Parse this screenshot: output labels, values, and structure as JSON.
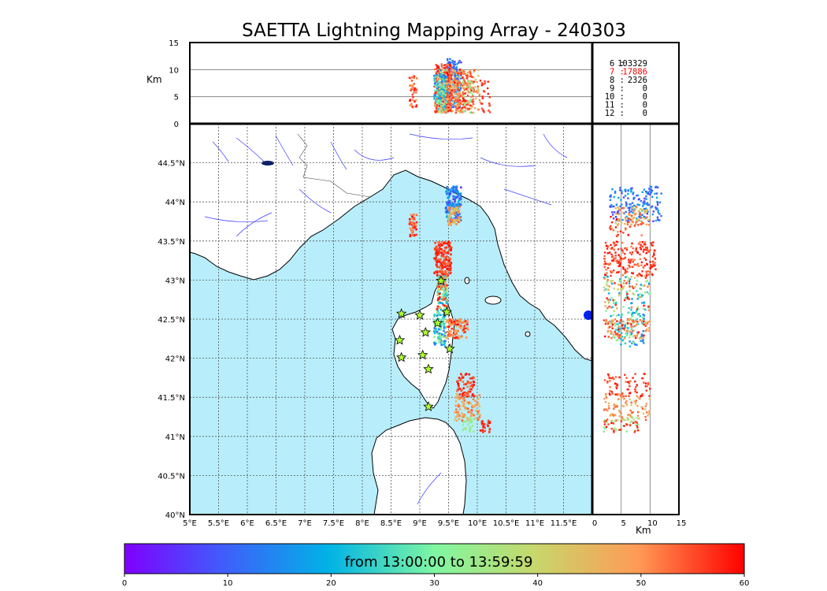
{
  "title": "SAETTA Lightning Mapping Array - 240303",
  "map": {
    "lon_ticks": [
      "5°E",
      "5.5°E",
      "6°E",
      "6.5°E",
      "7°E",
      "7.5°E",
      "8°E",
      "8.5°E",
      "9°E",
      "9.5°E",
      "10°E",
      "10.5°E",
      "11°E",
      "11.5°E"
    ],
    "lat_ticks": [
      "40°N",
      "40.5°N",
      "41°N",
      "41.5°N",
      "42°N",
      "42.5°N",
      "43°N",
      "43.5°N",
      "44°N",
      "44.5°N"
    ],
    "lon_range": [
      5,
      12
    ],
    "lat_range": [
      40,
      45
    ],
    "sea_color": "#b8eefb",
    "land_color": "#ffffff",
    "grid": "dotted"
  },
  "top_panel": {
    "unit": "Km",
    "y_ticks": [
      "0",
      "5",
      "10",
      "15"
    ],
    "ylim": [
      0,
      15
    ]
  },
  "side_panel": {
    "unit": "Km",
    "x_ticks": [
      "0",
      "5",
      "10",
      "15"
    ],
    "xlim": [
      0,
      15
    ]
  },
  "station_counts": [
    {
      "label": "6  :",
      "value": "103329",
      "color": "#000000"
    },
    {
      "label": "7  :",
      "value": "17886",
      "color": "#ff0000"
    },
    {
      "label": "8  :",
      "value": "2326",
      "color": "#000000"
    },
    {
      "label": "9  :",
      "value": "0",
      "color": "#000000"
    },
    {
      "label": "10  :",
      "value": "0",
      "color": "#000000"
    },
    {
      "label": "11  :",
      "value": "0",
      "color": "#000000"
    },
    {
      "label": "12  :",
      "value": "0",
      "color": "#000000"
    }
  ],
  "colorbar": {
    "label": "from 13:00:00 to 13:59:59",
    "ticks": [
      "0",
      "10",
      "20",
      "30",
      "40",
      "50",
      "60"
    ],
    "range": [
      0,
      60
    ],
    "colormap": "rainbow"
  },
  "chart_data": {
    "type": "scatter",
    "x_quantity": "longitude",
    "y_quantity": "latitude",
    "color_quantity": "minutes after 13:00:00",
    "stations": [
      {
        "lon": 8.68,
        "lat": 42.57
      },
      {
        "lon": 9.0,
        "lat": 42.55
      },
      {
        "lon": 9.47,
        "lat": 42.59
      },
      {
        "lon": 9.31,
        "lat": 42.45
      },
      {
        "lon": 9.1,
        "lat": 42.33
      },
      {
        "lon": 8.65,
        "lat": 42.23
      },
      {
        "lon": 9.52,
        "lat": 42.12
      },
      {
        "lon": 8.68,
        "lat": 42.01
      },
      {
        "lon": 9.05,
        "lat": 42.04
      },
      {
        "lon": 9.15,
        "lat": 41.86
      },
      {
        "lon": 9.15,
        "lat": 41.38
      },
      {
        "lon": 9.37,
        "lat": 42.99
      }
    ],
    "clusters": [
      {
        "lon": [
          9.45,
          9.72
        ],
        "lat": [
          43.75,
          44.2
        ],
        "alt": [
          3,
          12
        ],
        "t": [
          5,
          20
        ],
        "n": 170
      },
      {
        "lon": [
          9.5,
          9.7
        ],
        "lat": [
          43.7,
          43.95
        ],
        "alt": [
          4,
          10
        ],
        "t": [
          40,
          55
        ],
        "n": 60
      },
      {
        "lon": [
          8.82,
          8.95
        ],
        "lat": [
          43.55,
          43.85
        ],
        "alt": [
          3,
          9
        ],
        "t": [
          48,
          60
        ],
        "n": 40
      },
      {
        "lon": [
          9.25,
          9.55
        ],
        "lat": [
          43.05,
          43.5
        ],
        "alt": [
          2,
          11
        ],
        "t": [
          52,
          60
        ],
        "n": 200
      },
      {
        "lon": [
          9.3,
          9.48
        ],
        "lat": [
          42.6,
          43.05
        ],
        "alt": [
          2,
          10
        ],
        "t": [
          15,
          60
        ],
        "n": 140
      },
      {
        "lon": [
          9.25,
          9.45
        ],
        "lat": [
          42.15,
          42.6
        ],
        "alt": [
          3,
          9
        ],
        "t": [
          12,
          35
        ],
        "n": 110
      },
      {
        "lon": [
          9.45,
          9.85
        ],
        "lat": [
          42.25,
          42.5
        ],
        "alt": [
          2,
          10
        ],
        "t": [
          45,
          60
        ],
        "n": 100
      },
      {
        "lon": [
          9.65,
          9.95
        ],
        "lat": [
          41.5,
          41.8
        ],
        "alt": [
          2,
          10
        ],
        "t": [
          52,
          60
        ],
        "n": 70
      },
      {
        "lon": [
          9.6,
          10.05
        ],
        "lat": [
          41.2,
          41.55
        ],
        "alt": [
          2,
          10
        ],
        "t": [
          42,
          55
        ],
        "n": 90
      },
      {
        "lon": [
          9.75,
          9.95
        ],
        "lat": [
          41.05,
          41.25
        ],
        "alt": [
          2,
          8
        ],
        "t": [
          30,
          36
        ],
        "n": 25
      },
      {
        "lon": [
          10.05,
          10.25
        ],
        "lat": [
          41.05,
          41.2
        ],
        "alt": [
          2,
          8
        ],
        "t": [
          55,
          60
        ],
        "n": 25
      }
    ]
  }
}
